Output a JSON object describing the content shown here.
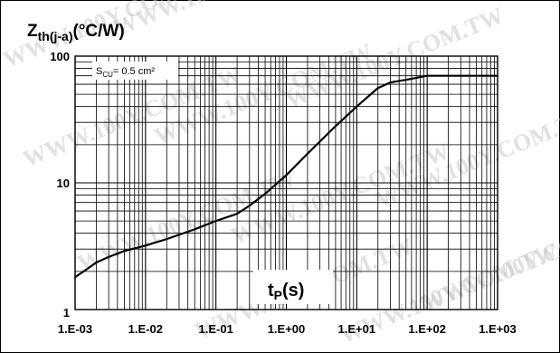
{
  "chart_data": {
    "type": "line",
    "title": "",
    "ylabel_main": "Z",
    "ylabel_sub": "th(j-a)",
    "ylabel_unit": "(°C/W)",
    "xlabel_main": "t",
    "xlabel_sub": "P",
    "xlabel_unit": "(s)",
    "annotation_main": "S",
    "annotation_sub": "CU",
    "annotation_rest": "= 0.5 cm²",
    "x_scale": "log",
    "y_scale": "log",
    "xlim": [
      0.001,
      1000
    ],
    "ylim": [
      1,
      100
    ],
    "grid": true,
    "x_tick_values": [
      0.001,
      0.01,
      0.1,
      1,
      10,
      100,
      1000
    ],
    "x_tick_labels": [
      "1.E-03",
      "1.E-02",
      "1.E-01",
      "1.E+00",
      "1.E+01",
      "1.E+02",
      "1.E+03"
    ],
    "y_tick_values": [
      1,
      10,
      100
    ],
    "y_tick_labels": [
      "1",
      "10",
      "100"
    ],
    "series": [
      {
        "x": [
          0.001,
          0.0015,
          0.002,
          0.003,
          0.005,
          0.01,
          0.02,
          0.05,
          0.1,
          0.2,
          0.3,
          0.5,
          1,
          2,
          5,
          10,
          20,
          30,
          50,
          100,
          200,
          500,
          1000
        ],
        "y": [
          1.8,
          2.1,
          2.35,
          2.6,
          2.9,
          3.2,
          3.6,
          4.3,
          5.0,
          5.7,
          6.6,
          8.2,
          11.5,
          17,
          28,
          40,
          56,
          62,
          65,
          70,
          70,
          70,
          70
        ]
      }
    ],
    "watermark": "WWW.100Y.COM.TW"
  }
}
